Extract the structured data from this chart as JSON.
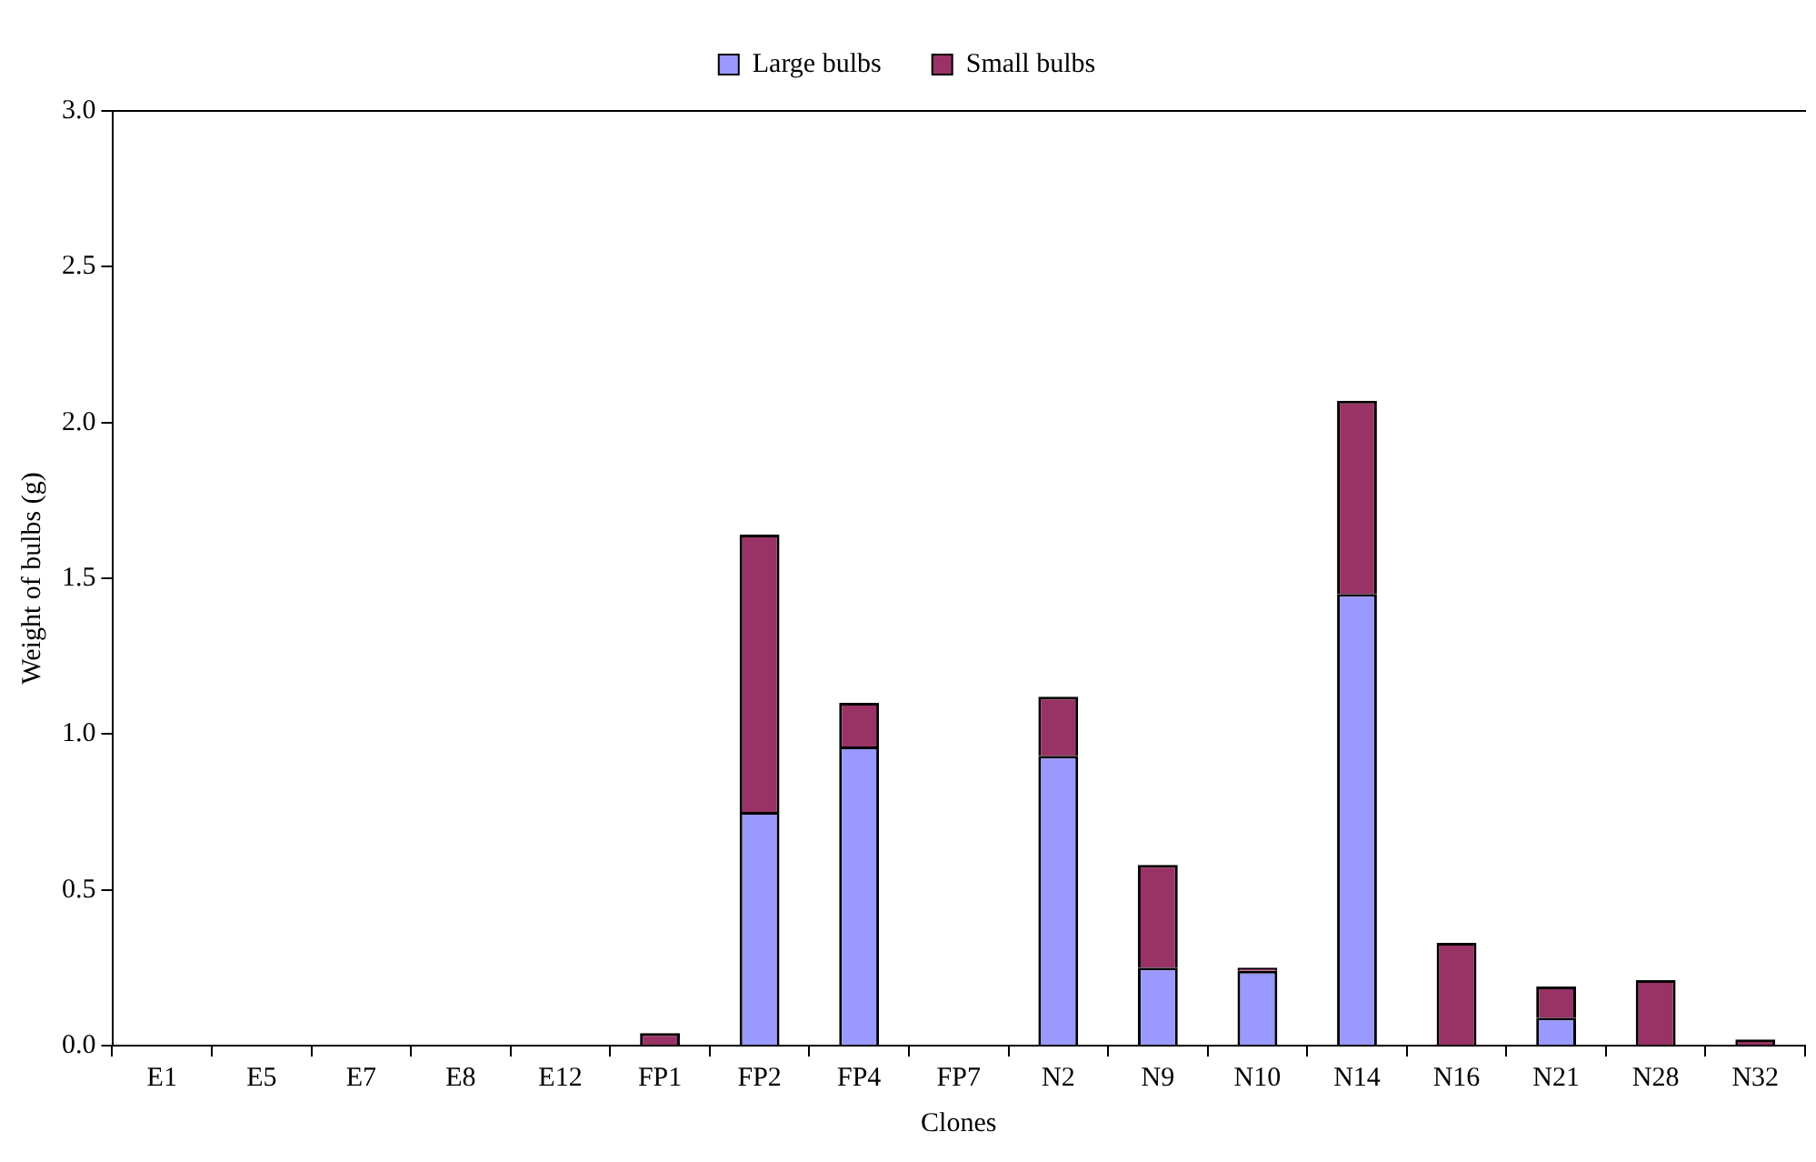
{
  "chart_data": {
    "type": "bar",
    "stacked": true,
    "xlabel": "Clones",
    "ylabel": "Weight of bulbs (g)",
    "categories": [
      "E1",
      "E5",
      "E7",
      "E8",
      "E12",
      "FP1",
      "FP2",
      "FP4",
      "FP7",
      "N2",
      "N9",
      "N10",
      "N14",
      "N16",
      "N21",
      "N28",
      "N32"
    ],
    "series": [
      {
        "name": "Large bulbs",
        "color": "#9999ff",
        "values": [
          0,
          0,
          0,
          0,
          0,
          0,
          0.75,
          0.96,
          0,
          0.93,
          0.25,
          0.24,
          1.45,
          0,
          0.09,
          0,
          0
        ]
      },
      {
        "name": "Small bulbs",
        "color": "#993366",
        "values": [
          0,
          0,
          0,
          0,
          0,
          0.04,
          0.89,
          0.14,
          0,
          0.19,
          0.33,
          0.01,
          0.62,
          0.33,
          0.1,
          0.21,
          0.02
        ]
      }
    ],
    "ylim": [
      0,
      3.0
    ],
    "yticks": [
      {
        "value": 0,
        "label": "0.0"
      },
      {
        "value": 0.5,
        "label": "0.5"
      },
      {
        "value": 1,
        "label": "1.0"
      },
      {
        "value": 1.5,
        "label": "1.5"
      },
      {
        "value": 2,
        "label": "2.0"
      },
      {
        "value": 2.5,
        "label": "2.5"
      },
      {
        "value": 3,
        "label": "3.0"
      }
    ],
    "grid": false,
    "legend": "top"
  }
}
